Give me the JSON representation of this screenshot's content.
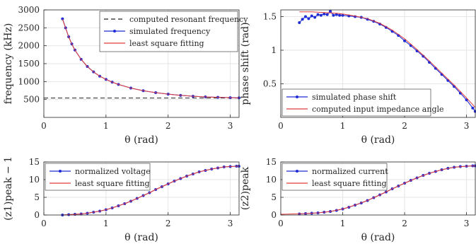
{
  "chart_data": [
    {
      "type": "line",
      "xlabel": "θ (rad)",
      "ylabel": "frequency (kHz)",
      "xlim": [
        0,
        3.1416
      ],
      "ylim": [
        0,
        3000
      ],
      "xticks": [
        0,
        1,
        2,
        3
      ],
      "yticks": [
        500,
        1000,
        1500,
        2000,
        2500,
        3000
      ],
      "grid": true,
      "legend_position": "top-right",
      "series": [
        {
          "name": "computed resonant frequency",
          "style": "dashed",
          "color": "#222222",
          "x": [
            0,
            3.1416
          ],
          "y": [
            540,
            540
          ]
        },
        {
          "name": "simulated frequency",
          "style": "line-markers",
          "color": "#1f2bd6",
          "x": [
            0.3,
            0.35,
            0.4,
            0.45,
            0.5,
            0.6,
            0.7,
            0.8,
            0.9,
            1.0,
            1.1,
            1.2,
            1.4,
            1.6,
            1.8,
            2.0,
            2.2,
            2.4,
            2.6,
            2.8,
            3.0,
            3.14
          ],
          "y": [
            2750,
            2500,
            2250,
            2050,
            1880,
            1620,
            1420,
            1270,
            1150,
            1060,
            985,
            920,
            820,
            745,
            690,
            650,
            615,
            590,
            572,
            560,
            550,
            545
          ]
        },
        {
          "name": "least square fitting",
          "style": "line",
          "color": "#e03c3c",
          "x": [
            0.3,
            0.35,
            0.4,
            0.45,
            0.5,
            0.6,
            0.7,
            0.8,
            0.9,
            1.0,
            1.1,
            1.2,
            1.4,
            1.6,
            1.8,
            2.0,
            2.2,
            2.4,
            2.6,
            2.8,
            3.0,
            3.14
          ],
          "y": [
            2740,
            2495,
            2248,
            2050,
            1880,
            1620,
            1420,
            1270,
            1150,
            1060,
            985,
            920,
            820,
            745,
            690,
            650,
            615,
            590,
            572,
            560,
            550,
            545
          ]
        }
      ]
    },
    {
      "type": "line",
      "xlabel": "θ (rad)",
      "ylabel": "phase shift (rad)",
      "xlim": [
        0,
        3.1416
      ],
      "ylim": [
        0,
        1.6
      ],
      "xticks": [
        0,
        1,
        2,
        3
      ],
      "yticks": [
        0.5,
        1,
        1.5
      ],
      "grid": true,
      "legend_position": "bottom-left",
      "series": [
        {
          "name": "simulated phase shift",
          "style": "line-markers",
          "color": "#1f2bd6",
          "x": [
            0.3,
            0.35,
            0.4,
            0.45,
            0.5,
            0.55,
            0.6,
            0.65,
            0.7,
            0.75,
            0.8,
            0.85,
            0.9,
            0.95,
            1.0,
            1.1,
            1.2,
            1.3,
            1.4,
            1.5,
            1.6,
            1.7,
            1.8,
            1.9,
            2.0,
            2.1,
            2.2,
            2.3,
            2.4,
            2.5,
            2.6,
            2.7,
            2.8,
            2.9,
            3.0,
            3.1,
            3.14
          ],
          "y": [
            1.41,
            1.46,
            1.5,
            1.47,
            1.51,
            1.49,
            1.53,
            1.52,
            1.54,
            1.53,
            1.58,
            1.52,
            1.53,
            1.52,
            1.52,
            1.51,
            1.5,
            1.49,
            1.46,
            1.43,
            1.39,
            1.34,
            1.28,
            1.22,
            1.14,
            1.07,
            0.99,
            0.91,
            0.82,
            0.73,
            0.64,
            0.55,
            0.46,
            0.36,
            0.26,
            0.14,
            0.09
          ]
        },
        {
          "name": "computed input impedance angle",
          "style": "line",
          "color": "#e03c3c",
          "x": [
            0.3,
            0.5,
            0.7,
            0.9,
            1.0,
            1.2,
            1.4,
            1.6,
            1.8,
            2.0,
            2.2,
            2.4,
            2.6,
            2.8,
            3.0,
            3.14
          ],
          "y": [
            1.57,
            1.57,
            1.56,
            1.55,
            1.54,
            1.51,
            1.47,
            1.4,
            1.3,
            1.17,
            1.01,
            0.84,
            0.66,
            0.48,
            0.29,
            0.15
          ]
        }
      ]
    },
    {
      "type": "line",
      "xlabel": "θ (rad)",
      "ylabel": "(z1)peak − 1",
      "xlim": [
        0,
        3.1416
      ],
      "ylim": [
        0,
        15
      ],
      "xticks": [
        0,
        1,
        2,
        3
      ],
      "yticks": [
        0,
        5,
        10,
        15
      ],
      "grid": true,
      "legend_position": "top-left",
      "series": [
        {
          "name": "normalized voltage",
          "style": "line-markers",
          "color": "#1f2bd6",
          "x": [
            0.3,
            0.4,
            0.5,
            0.6,
            0.7,
            0.8,
            0.9,
            1.0,
            1.1,
            1.2,
            1.3,
            1.4,
            1.5,
            1.6,
            1.7,
            1.8,
            1.9,
            2.0,
            2.1,
            2.2,
            2.3,
            2.4,
            2.5,
            2.6,
            2.7,
            2.8,
            2.9,
            3.0,
            3.1,
            3.14
          ],
          "y": [
            0.0,
            0.1,
            0.2,
            0.3,
            0.5,
            0.8,
            1.1,
            1.5,
            2.0,
            2.6,
            3.2,
            3.9,
            4.7,
            5.5,
            6.3,
            7.2,
            8.0,
            8.8,
            9.6,
            10.3,
            11.0,
            11.6,
            12.2,
            12.6,
            13.0,
            13.3,
            13.6,
            13.7,
            13.8,
            13.8
          ]
        },
        {
          "name": "least square fitting",
          "style": "line",
          "color": "#e03c3c",
          "x": [
            0.3,
            0.4,
            0.5,
            0.6,
            0.7,
            0.8,
            0.9,
            1.0,
            1.1,
            1.2,
            1.3,
            1.4,
            1.5,
            1.6,
            1.7,
            1.8,
            1.9,
            2.0,
            2.1,
            2.2,
            2.3,
            2.4,
            2.5,
            2.6,
            2.7,
            2.8,
            2.9,
            3.0,
            3.1,
            3.14
          ],
          "y": [
            0.0,
            0.1,
            0.2,
            0.3,
            0.5,
            0.8,
            1.1,
            1.5,
            2.0,
            2.6,
            3.2,
            3.9,
            4.7,
            5.5,
            6.3,
            7.2,
            8.0,
            8.8,
            9.6,
            10.3,
            11.0,
            11.6,
            12.2,
            12.6,
            13.0,
            13.3,
            13.6,
            13.7,
            13.8,
            13.8
          ]
        }
      ]
    },
    {
      "type": "line",
      "xlabel": "θ (rad)",
      "ylabel": "(z2)peak",
      "xlim": [
        0,
        3.1416
      ],
      "ylim": [
        0,
        15
      ],
      "xticks": [
        0,
        1,
        2,
        3
      ],
      "yticks": [
        0,
        5,
        10,
        15
      ],
      "grid": true,
      "legend_position": "top-left",
      "series": [
        {
          "name": "normalized current",
          "style": "line-markers",
          "color": "#1f2bd6",
          "x": [
            0.3,
            0.4,
            0.5,
            0.6,
            0.7,
            0.8,
            0.9,
            1.0,
            1.1,
            1.2,
            1.3,
            1.4,
            1.5,
            1.6,
            1.7,
            1.8,
            1.9,
            2.0,
            2.1,
            2.2,
            2.3,
            2.4,
            2.5,
            2.6,
            2.7,
            2.8,
            2.9,
            3.0,
            3.1,
            3.14
          ],
          "y": [
            0.3,
            0.4,
            0.5,
            0.6,
            0.8,
            1.0,
            1.3,
            1.7,
            2.2,
            2.8,
            3.4,
            4.1,
            4.9,
            5.7,
            6.5,
            7.4,
            8.2,
            9.0,
            9.8,
            10.5,
            11.2,
            11.8,
            12.3,
            12.8,
            13.2,
            13.5,
            13.7,
            13.8,
            13.9,
            13.9
          ]
        },
        {
          "name": "least square fitting",
          "style": "line",
          "color": "#e03c3c",
          "x": [
            0.0,
            0.2,
            0.4,
            0.6,
            0.8,
            1.0,
            1.2,
            1.4,
            1.6,
            1.8,
            2.0,
            2.2,
            2.4,
            2.6,
            2.8,
            3.0,
            3.14
          ],
          "y": [
            0.2,
            0.3,
            0.4,
            0.6,
            1.0,
            1.7,
            2.8,
            4.1,
            5.7,
            7.4,
            9.0,
            10.5,
            11.8,
            12.8,
            13.5,
            13.8,
            13.9
          ]
        }
      ]
    }
  ]
}
